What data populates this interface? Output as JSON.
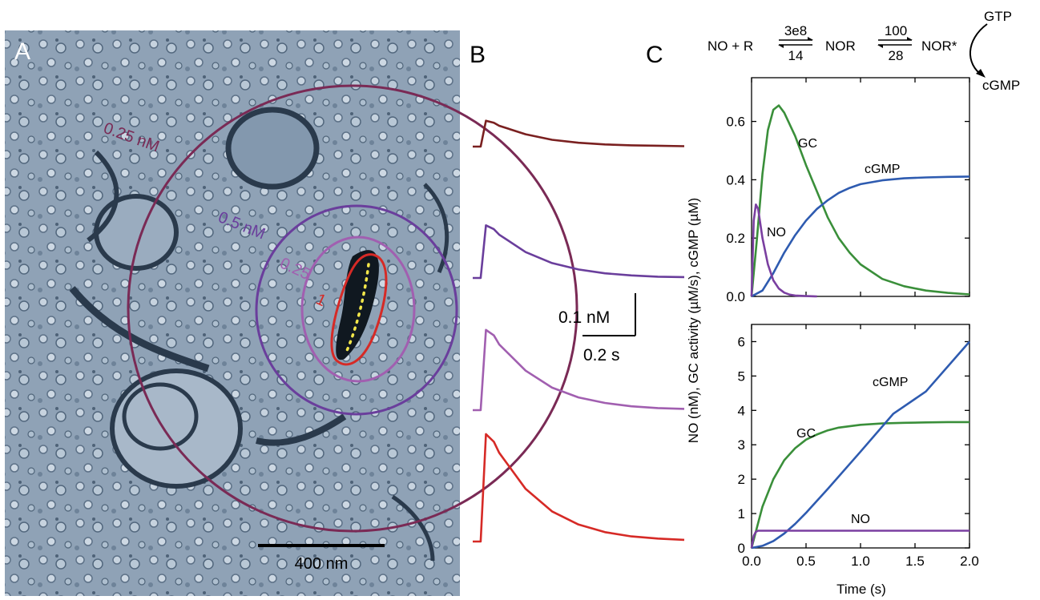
{
  "figure": {
    "panel_labels": {
      "a": "A",
      "b": "B",
      "c": "C"
    },
    "panel_a": {
      "rings": [
        {
          "label": "0.25 nM",
          "color": "#7a2a55"
        },
        {
          "label": "0.5 nM",
          "color": "#6a3e9c"
        },
        {
          "label": "0.25",
          "color": "#a15fb0"
        },
        {
          "label": "1",
          "color": "#d62a26"
        }
      ],
      "scale_bar_label": "400 nm"
    },
    "panel_b": {
      "scale_value_label": "0.1 nM",
      "scale_time_label": "0.2 s"
    },
    "scheme": {
      "left_species": "NO + R",
      "k_on": "3e8",
      "k_off": "14",
      "middle_species": "NOR",
      "k_act": "100",
      "k_deact": "28",
      "right_species": "NOR*",
      "substrate": "GTP",
      "product": "cGMP"
    }
  },
  "chart_data": [
    {
      "panel": "B",
      "type": "line",
      "xlabel": "",
      "ylabel": "",
      "series": [
        {
          "color": "#7a2020",
          "peak_nM": 0.061,
          "x": [
            0.0,
            0.03,
            0.05,
            0.08,
            0.1,
            0.2,
            0.3,
            0.4,
            0.5,
            0.6,
            0.7,
            0.8
          ],
          "y": [
            0.0,
            0.0,
            0.061,
            0.056,
            0.049,
            0.029,
            0.016,
            0.009,
            0.005,
            0.003,
            0.002,
            0.001
          ]
        },
        {
          "color": "#6a3e9c",
          "peak_nM": 0.124,
          "x": [
            0.0,
            0.03,
            0.05,
            0.08,
            0.1,
            0.2,
            0.3,
            0.4,
            0.5,
            0.6,
            0.7,
            0.8
          ],
          "y": [
            0.0,
            0.0,
            0.124,
            0.115,
            0.102,
            0.061,
            0.035,
            0.02,
            0.011,
            0.006,
            0.003,
            0.002
          ]
        },
        {
          "color": "#a15fb0",
          "peak_nM": 0.189,
          "x": [
            0.0,
            0.03,
            0.05,
            0.08,
            0.1,
            0.2,
            0.3,
            0.4,
            0.5,
            0.6,
            0.7,
            0.8
          ],
          "y": [
            0.0,
            0.0,
            0.189,
            0.176,
            0.155,
            0.093,
            0.053,
            0.03,
            0.017,
            0.009,
            0.005,
            0.003
          ]
        },
        {
          "color": "#d62a26",
          "peak_nM": 0.253,
          "x": [
            0.0,
            0.03,
            0.05,
            0.08,
            0.1,
            0.2,
            0.3,
            0.4,
            0.5,
            0.6,
            0.7,
            0.8
          ],
          "y": [
            0.0,
            0.0,
            0.253,
            0.235,
            0.209,
            0.124,
            0.071,
            0.04,
            0.022,
            0.012,
            0.007,
            0.004
          ]
        }
      ]
    },
    {
      "panel": "C-top",
      "type": "line",
      "xlabel": "",
      "ylabel": "NO (nM), GC activity (µM/s), cGMP (µM)",
      "xlim": [
        0,
        2.0
      ],
      "ylim": [
        0,
        0.75
      ],
      "xticks": [
        0,
        0.5,
        1.0,
        1.5,
        2.0
      ],
      "yticks": [
        "0.0",
        "0.2",
        "0.4",
        "0.6"
      ],
      "series": [
        {
          "name": "GC",
          "color": "#3a8f3a",
          "x": [
            0,
            0.05,
            0.1,
            0.15,
            0.2,
            0.25,
            0.3,
            0.4,
            0.5,
            0.6,
            0.7,
            0.8,
            0.9,
            1.0,
            1.2,
            1.4,
            1.6,
            1.8,
            2.0
          ],
          "y": [
            0,
            0.2,
            0.42,
            0.57,
            0.64,
            0.655,
            0.63,
            0.55,
            0.45,
            0.36,
            0.27,
            0.2,
            0.15,
            0.11,
            0.06,
            0.035,
            0.02,
            0.012,
            0.007
          ]
        },
        {
          "name": "cGMP",
          "color": "#2e5bb0",
          "x": [
            0,
            0.1,
            0.2,
            0.3,
            0.4,
            0.5,
            0.6,
            0.7,
            0.8,
            0.9,
            1.0,
            1.2,
            1.4,
            1.6,
            1.8,
            2.0
          ],
          "y": [
            0,
            0.02,
            0.08,
            0.15,
            0.21,
            0.26,
            0.3,
            0.33,
            0.355,
            0.372,
            0.385,
            0.398,
            0.405,
            0.408,
            0.41,
            0.411
          ]
        },
        {
          "name": "NO",
          "color": "#7a3fa0",
          "x": [
            0,
            0.02,
            0.04,
            0.06,
            0.08,
            0.1,
            0.15,
            0.2,
            0.25,
            0.3,
            0.35,
            0.4,
            0.5,
            0.6
          ],
          "y": [
            0,
            0.26,
            0.315,
            0.3,
            0.25,
            0.2,
            0.11,
            0.055,
            0.027,
            0.013,
            0.006,
            0.003,
            0.001,
            0
          ]
        }
      ]
    },
    {
      "panel": "C-bottom",
      "type": "line",
      "xlabel": "Time (s)",
      "ylabel": "",
      "xlim": [
        0,
        2.0
      ],
      "ylim": [
        0,
        6.5
      ],
      "xticks": [
        "0.0",
        "0.5",
        "1.0",
        "1.5",
        "2.0"
      ],
      "yticks": [
        0,
        1,
        2,
        3,
        4,
        5,
        6
      ],
      "series": [
        {
          "name": "GC",
          "color": "#3a8f3a",
          "x": [
            0,
            0.1,
            0.2,
            0.3,
            0.4,
            0.5,
            0.6,
            0.7,
            0.8,
            1.0,
            1.2,
            1.4,
            1.6,
            1.8,
            2.0
          ],
          "y": [
            0,
            1.2,
            2.0,
            2.55,
            2.9,
            3.15,
            3.3,
            3.42,
            3.5,
            3.58,
            3.62,
            3.64,
            3.65,
            3.66,
            3.66
          ]
        },
        {
          "name": "cGMP",
          "color": "#2e5bb0",
          "x": [
            0,
            0.1,
            0.2,
            0.3,
            0.4,
            0.5,
            0.7,
            1.0,
            1.3,
            1.6,
            2.0
          ],
          "y": [
            0,
            0.06,
            0.2,
            0.42,
            0.7,
            1.02,
            1.72,
            2.8,
            3.9,
            4.55,
            6.0
          ]
        },
        {
          "name": "NO",
          "color": "#7a3fa0",
          "x": [
            0,
            0.02,
            0.04,
            0.06,
            0.1,
            0.5,
            1.0,
            1.5,
            2.0
          ],
          "y": [
            0,
            0.35,
            0.47,
            0.5,
            0.5,
            0.5,
            0.5,
            0.5,
            0.5
          ]
        }
      ]
    }
  ]
}
